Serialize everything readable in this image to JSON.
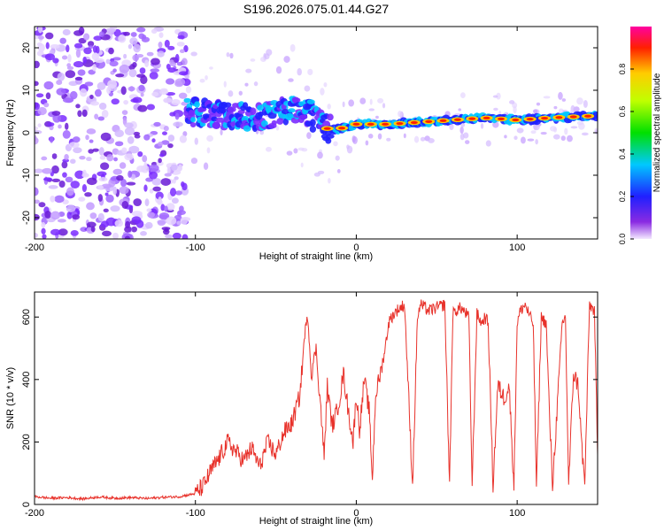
{
  "figure_title": "S196.2026.075.01.44.G27",
  "colors": {
    "snr_line": "#e8322b",
    "axis": "#000000",
    "spectrogram_background": "#ffffff"
  },
  "chart_data": [
    {
      "type": "heatmap",
      "title": "S196.2026.075.01.44.G27",
      "xlabel": "Height of straight line (km)",
      "ylabel": "Frequency (Hz)",
      "xlim": [
        -200,
        150
      ],
      "ylim": [
        -25,
        25
      ],
      "x_ticks": [
        -200,
        -100,
        0,
        100
      ],
      "x_tick_labels": [
        "-200",
        "-100",
        "0",
        "100"
      ],
      "y_ticks": [
        -20,
        -10,
        0,
        10,
        20
      ],
      "y_tick_labels": [
        "-20",
        "-10",
        "0",
        "10",
        "20"
      ],
      "colorbar": {
        "label": "Normalized spectral amplitude",
        "range": [
          0,
          1
        ],
        "ticks": [
          0,
          0.2,
          0.4,
          0.6,
          0.8
        ],
        "tick_labels": [
          "0.0",
          "0.2",
          "0.4",
          "0.6",
          "0.8"
        ]
      },
      "description_points": {
        "noise_region_x": [
          -200,
          -105
        ],
        "signal_ridge": {
          "x": [
            -105,
            -80,
            -60,
            -40,
            -30,
            -20,
            -10,
            0,
            20,
            40,
            60,
            80,
            100,
            120,
            150
          ],
          "freq_hz": [
            5,
            4,
            3.5,
            6,
            5,
            1,
            1,
            2,
            2,
            2.5,
            3,
            3.5,
            3,
            3.5,
            4
          ]
        }
      }
    },
    {
      "type": "line",
      "xlabel": "Height of straight line (km)",
      "ylabel": "SNR (10 * v/v)",
      "xlim": [
        -200,
        150
      ],
      "ylim": [
        0,
        680
      ],
      "x_ticks": [
        -200,
        -100,
        0,
        100
      ],
      "x_tick_labels": [
        "-200",
        "-100",
        "0",
        "100"
      ],
      "y_ticks": [
        0,
        200,
        400,
        600
      ],
      "y_tick_labels": [
        "0",
        "200",
        "400",
        "600"
      ],
      "series": [
        {
          "name": "SNR",
          "x": [
            -200,
            -190,
            -180,
            -170,
            -160,
            -150,
            -140,
            -130,
            -120,
            -110,
            -100,
            -95,
            -90,
            -85,
            -80,
            -75,
            -70,
            -65,
            -60,
            -55,
            -50,
            -45,
            -40,
            -35,
            -32,
            -30,
            -28,
            -25,
            -22,
            -20,
            -18,
            -15,
            -12,
            -10,
            -8,
            -5,
            -2,
            0,
            2,
            5,
            8,
            10,
            12,
            15,
            18,
            20,
            22,
            25,
            30,
            35,
            38,
            40,
            45,
            50,
            55,
            58,
            60,
            62,
            65,
            70,
            72,
            75,
            78,
            80,
            82,
            85,
            88,
            90,
            92,
            95,
            98,
            100,
            102,
            105,
            108,
            110,
            112,
            115,
            118,
            120,
            122,
            125,
            128,
            130,
            132,
            135,
            138,
            140,
            142,
            145,
            148,
            150
          ],
          "values": [
            25,
            20,
            22,
            18,
            24,
            20,
            22,
            19,
            23,
            25,
            35,
            60,
            110,
            150,
            200,
            170,
            140,
            180,
            120,
            200,
            160,
            230,
            260,
            350,
            550,
            600,
            420,
            500,
            300,
            150,
            380,
            250,
            300,
            350,
            420,
            300,
            200,
            350,
            240,
            400,
            300,
            80,
            350,
            420,
            500,
            580,
            600,
            620,
            640,
            60,
            600,
            640,
            620,
            630,
            640,
            60,
            610,
            620,
            630,
            600,
            60,
            610,
            580,
            600,
            580,
            60,
            380,
            360,
            340,
            380,
            60,
            580,
            620,
            640,
            600,
            580,
            60,
            600,
            580,
            300,
            60,
            320,
            580,
            600,
            60,
            420,
            380,
            200,
            60,
            640,
            620,
            160
          ]
        }
      ]
    }
  ]
}
